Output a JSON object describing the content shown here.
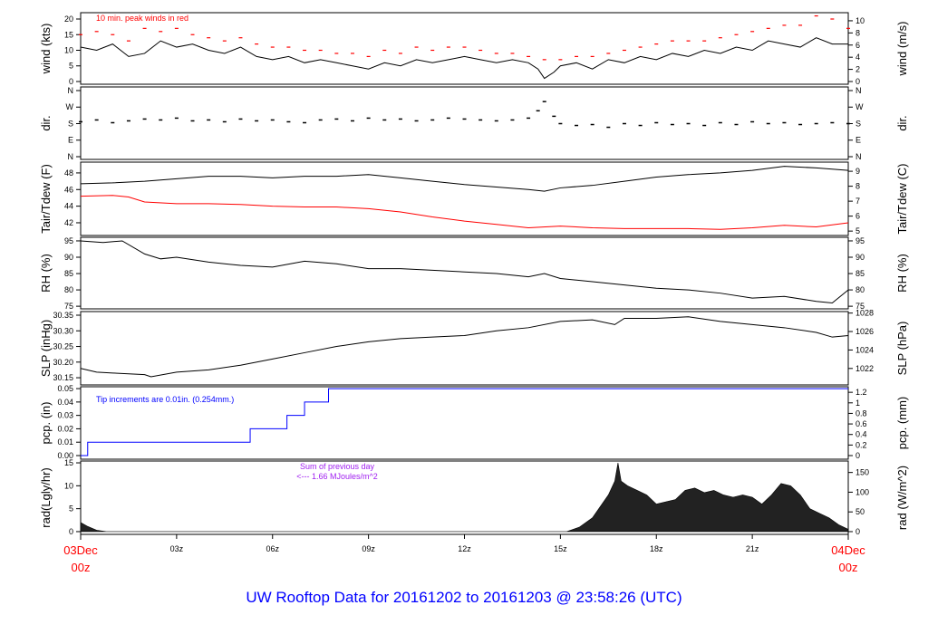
{
  "title": "UW Rooftop Data for 20161202  to  20161203 @ 23:58:26  (UTC)",
  "colors": {
    "title": "#0000ff",
    "peak": "#ff0000",
    "dew": "#ff0000",
    "line": "#000000",
    "pcp": "#0000ff",
    "rad_note": "#a020f0",
    "date": "#ff0000"
  },
  "x_axis": {
    "range_hours": [
      0,
      24
    ],
    "start_date": "03Dec",
    "start_time": "00z",
    "end_date": "04Dec",
    "end_time": "00z",
    "ticks": [
      {
        "h": 3,
        "label": "03z"
      },
      {
        "h": 6,
        "label": "06z"
      },
      {
        "h": 9,
        "label": "09z"
      },
      {
        "h": 12,
        "label": "12z"
      },
      {
        "h": 15,
        "label": "15z"
      },
      {
        "h": 18,
        "label": "18z"
      },
      {
        "h": 21,
        "label": "21z"
      }
    ]
  },
  "chart_data": [
    {
      "id": "wind",
      "type": "line",
      "ylabel": "wind (kts)",
      "ylabel_right": "wind (m/s)",
      "ylim": [
        -0.87,
        22.03
      ],
      "left_ticks": [
        0,
        5,
        10,
        15,
        20
      ],
      "right_ticks": [
        0,
        2,
        4,
        6,
        8,
        10
      ],
      "right_unit_factor": 1.944,
      "annotation": "10 min. peak winds in red",
      "series": [
        {
          "name": "wind",
          "x": [
            0,
            0.5,
            1,
            1.5,
            2,
            2.5,
            3,
            3.5,
            4,
            4.5,
            5,
            5.5,
            6,
            6.5,
            7,
            7.5,
            8,
            8.5,
            9,
            9.5,
            10,
            10.5,
            11,
            11.5,
            12,
            12.5,
            13,
            13.5,
            14,
            14.3,
            14.5,
            14.8,
            15,
            15.5,
            16,
            16.5,
            17,
            17.5,
            18,
            18.5,
            19,
            19.5,
            20,
            20.5,
            21,
            21.5,
            22,
            22.5,
            23,
            23.5,
            24
          ],
          "y": [
            11,
            10,
            12,
            8,
            9,
            13,
            11,
            12,
            10,
            9,
            11,
            8,
            7,
            8,
            6,
            7,
            6,
            5,
            4,
            6,
            5,
            7,
            6,
            7,
            8,
            7,
            6,
            7,
            6,
            4,
            1,
            3,
            5,
            6,
            4,
            7,
            6,
            8,
            7,
            9,
            8,
            10,
            9,
            11,
            10,
            13,
            12,
            11,
            14,
            12,
            12
          ]
        },
        {
          "name": "10 min peak",
          "x": [
            0,
            0.5,
            1,
            1.5,
            2,
            2.5,
            3,
            3.5,
            4,
            4.5,
            5,
            5.5,
            6,
            6.5,
            7,
            7.5,
            8,
            8.5,
            9,
            9.5,
            10,
            10.5,
            11,
            11.5,
            12,
            12.5,
            13,
            13.5,
            14,
            14.5,
            15,
            15.5,
            16,
            16.5,
            17,
            17.5,
            18,
            18.5,
            19,
            19.5,
            20,
            20.5,
            21,
            21.5,
            22,
            22.5,
            23,
            23.5,
            24
          ],
          "y": [
            15,
            16,
            15,
            13,
            17,
            16,
            17,
            15,
            14,
            13,
            14,
            12,
            11,
            11,
            10,
            10,
            9,
            9,
            8,
            10,
            9,
            11,
            10,
            11,
            11,
            10,
            9,
            9,
            8,
            7,
            7,
            8,
            8,
            9,
            10,
            11,
            12,
            13,
            13,
            13,
            14,
            15,
            16,
            17,
            18,
            18,
            21,
            20,
            17
          ]
        }
      ]
    },
    {
      "id": "dir",
      "type": "scatter",
      "ylabel": "dir.",
      "ylabel_right": "dir.",
      "ylim": [
        -14.8,
        379.7
      ],
      "compass_ticks": [
        {
          "v": 360,
          "label": "N"
        },
        {
          "v": 270,
          "label": "W"
        },
        {
          "v": 180,
          "label": "S"
        },
        {
          "v": 90,
          "label": "E"
        },
        {
          "v": 0,
          "label": "N"
        }
      ],
      "series": [
        {
          "name": "direction",
          "x": [
            0,
            0.5,
            1,
            1.5,
            2,
            2.5,
            3,
            3.5,
            4,
            4.5,
            5,
            5.5,
            6,
            6.5,
            7,
            7.5,
            8,
            8.5,
            9,
            9.5,
            10,
            10.5,
            11,
            11.5,
            12,
            12.5,
            13,
            13.5,
            14,
            14.3,
            14.5,
            14.8,
            15,
            15.5,
            16,
            16.5,
            17,
            17.5,
            18,
            18.5,
            19,
            19.5,
            20,
            20.5,
            21,
            21.5,
            22,
            22.5,
            23,
            23.5,
            24
          ],
          "y": [
            190,
            200,
            185,
            195,
            205,
            200,
            210,
            195,
            200,
            190,
            205,
            195,
            200,
            190,
            185,
            200,
            205,
            195,
            210,
            200,
            205,
            195,
            200,
            210,
            205,
            200,
            195,
            200,
            210,
            250,
            300,
            220,
            180,
            170,
            175,
            160,
            180,
            170,
            185,
            175,
            180,
            170,
            185,
            175,
            190,
            180,
            185,
            175,
            180,
            185,
            180
          ]
        }
      ]
    },
    {
      "id": "temp",
      "type": "line",
      "ylabel": "Tair/Tdew (F)",
      "ylabel_right": "Tair/Tdew (C)",
      "ylim": [
        40.47,
        49.3
      ],
      "left_ticks": [
        42,
        44,
        46,
        48
      ],
      "right_ticks": [
        5,
        6,
        7,
        8,
        9
      ],
      "right_unit": "C",
      "series": [
        {
          "name": "Tair",
          "x": [
            0,
            1,
            2,
            3,
            4,
            5,
            6,
            7,
            8,
            9,
            10,
            11,
            12,
            13,
            14,
            14.5,
            15,
            16,
            17,
            18,
            19,
            20,
            21,
            22,
            23,
            24
          ],
          "y": [
            46.7,
            46.8,
            47.0,
            47.3,
            47.6,
            47.6,
            47.4,
            47.6,
            47.6,
            47.8,
            47.4,
            47.0,
            46.6,
            46.3,
            46.0,
            45.8,
            46.2,
            46.5,
            47.0,
            47.5,
            47.8,
            48.0,
            48.3,
            48.8,
            48.6,
            48.3
          ]
        },
        {
          "name": "Tdew",
          "x": [
            0,
            1,
            1.5,
            2,
            3,
            4,
            5,
            6,
            7,
            8,
            9,
            10,
            11,
            12,
            13,
            14,
            15,
            16,
            17,
            18,
            19,
            20,
            21,
            22,
            23,
            24
          ],
          "y": [
            45.2,
            45.3,
            45.1,
            44.5,
            44.3,
            44.3,
            44.2,
            44.0,
            43.9,
            43.9,
            43.7,
            43.3,
            42.7,
            42.2,
            41.8,
            41.4,
            41.6,
            41.4,
            41.3,
            41.3,
            41.3,
            41.2,
            41.4,
            41.7,
            41.5,
            42.0
          ]
        }
      ]
    },
    {
      "id": "rh",
      "type": "line",
      "ylabel": "RH (%)",
      "ylabel_right": "RH (%)",
      "ylim": [
        74.2,
        96.1
      ],
      "left_ticks": [
        75,
        80,
        85,
        90,
        95
      ],
      "right_ticks": [
        75,
        80,
        85,
        90,
        95
      ],
      "series": [
        {
          "name": "RH",
          "x": [
            0,
            0.7,
            1.3,
            2,
            2.5,
            3,
            4,
            5,
            6,
            7,
            8,
            9,
            10,
            11,
            12,
            13,
            14,
            14.5,
            15,
            16,
            17,
            18,
            19,
            20,
            21,
            22,
            23,
            23.5,
            24
          ],
          "y": [
            95,
            94.5,
            95,
            91,
            89.5,
            90,
            88.5,
            87.5,
            87,
            88.8,
            88,
            86.5,
            86.5,
            86,
            85.5,
            85,
            84,
            85,
            83.5,
            82.5,
            81.5,
            80.5,
            80,
            79,
            77.5,
            78,
            76.5,
            76,
            80
          ]
        }
      ]
    },
    {
      "id": "slp",
      "type": "line",
      "ylabel": "SLP (inHg)",
      "ylabel_right": "SLP (hPa)",
      "ylim": [
        30.127,
        30.3616
      ],
      "left_ticks": [
        30.15,
        30.2,
        30.25,
        30.3,
        30.35
      ],
      "left_tick_labels": [
        "30.15",
        "30.20",
        "30.25",
        "30.30",
        "30.35"
      ],
      "right_ticks": [
        1022,
        1024,
        1026,
        1028
      ],
      "right_unit": "hPa",
      "series": [
        {
          "name": "SLP",
          "x": [
            0,
            0.5,
            1,
            2,
            2.2,
            3,
            4,
            5,
            6,
            7,
            8,
            9,
            10,
            11,
            12,
            13,
            14,
            15,
            16,
            16.7,
            17,
            18,
            19,
            20,
            21,
            22,
            23,
            23.5,
            24
          ],
          "y": [
            30.18,
            30.168,
            30.165,
            30.16,
            30.153,
            30.168,
            30.175,
            30.19,
            30.21,
            30.23,
            30.25,
            30.265,
            30.275,
            30.28,
            30.285,
            30.3,
            30.31,
            30.33,
            30.335,
            30.32,
            30.34,
            30.34,
            30.345,
            30.33,
            30.32,
            30.31,
            30.295,
            30.28,
            30.285
          ]
        }
      ]
    },
    {
      "id": "pcp",
      "type": "line",
      "ylabel": "pcp. (in)",
      "ylabel_right": "pcp. (mm)",
      "ylim": [
        -0.0027,
        0.0514
      ],
      "left_ticks": [
        0,
        0.01,
        0.02,
        0.03,
        0.04,
        0.05
      ],
      "left_tick_labels": [
        "0.00",
        "0.01",
        "0.02",
        "0.03",
        "0.04",
        "0.05"
      ],
      "right_ticks": [
        0,
        0.2,
        0.4,
        0.6,
        0.8,
        1,
        1.2
      ],
      "right_unit": "mm",
      "annotation": "Tip increments are 0.01in. (0.254mm.)",
      "series": [
        {
          "name": "cumulative precip",
          "step": true,
          "x": [
            0,
            0.22,
            5.3,
            6.45,
            7.0,
            7.75,
            24
          ],
          "y": [
            0,
            0.01,
            0.02,
            0.03,
            0.04,
            0.05,
            0.05
          ]
        }
      ]
    },
    {
      "id": "rad",
      "type": "area",
      "ylabel": "rad(Lgly/hr)",
      "ylabel_right": "rad (W/m^2)",
      "ylim": [
        -0.6,
        15.4
      ],
      "left_ticks": [
        0,
        5,
        10,
        15
      ],
      "right_ticks": [
        0,
        50,
        100,
        150
      ],
      "right_unit_factor": 0.086,
      "annotation_line1": "Sum of previous day",
      "annotation_line2": "<--- 1.66 MJoules/m^2",
      "series": [
        {
          "name": "radiation",
          "x": [
            0,
            0.2,
            0.5,
            0.8,
            15.2,
            15.6,
            16,
            16.3,
            16.5,
            16.7,
            16.8,
            16.9,
            17.1,
            17.4,
            17.7,
            18,
            18.3,
            18.6,
            18.9,
            19.2,
            19.5,
            19.8,
            20.1,
            20.4,
            20.7,
            21,
            21.3,
            21.6,
            21.9,
            22.2,
            22.5,
            22.8,
            23.1,
            23.4,
            23.7,
            24
          ],
          "y": [
            2,
            1.2,
            0.3,
            0,
            0,
            1,
            3,
            6,
            8,
            11,
            15,
            11,
            10,
            9,
            8,
            6,
            6.5,
            7,
            9,
            9.5,
            8.5,
            9,
            8,
            7.5,
            8,
            7.5,
            6,
            8,
            10.5,
            10,
            8,
            5,
            4,
            3,
            1.5,
            0.5
          ]
        }
      ]
    }
  ]
}
